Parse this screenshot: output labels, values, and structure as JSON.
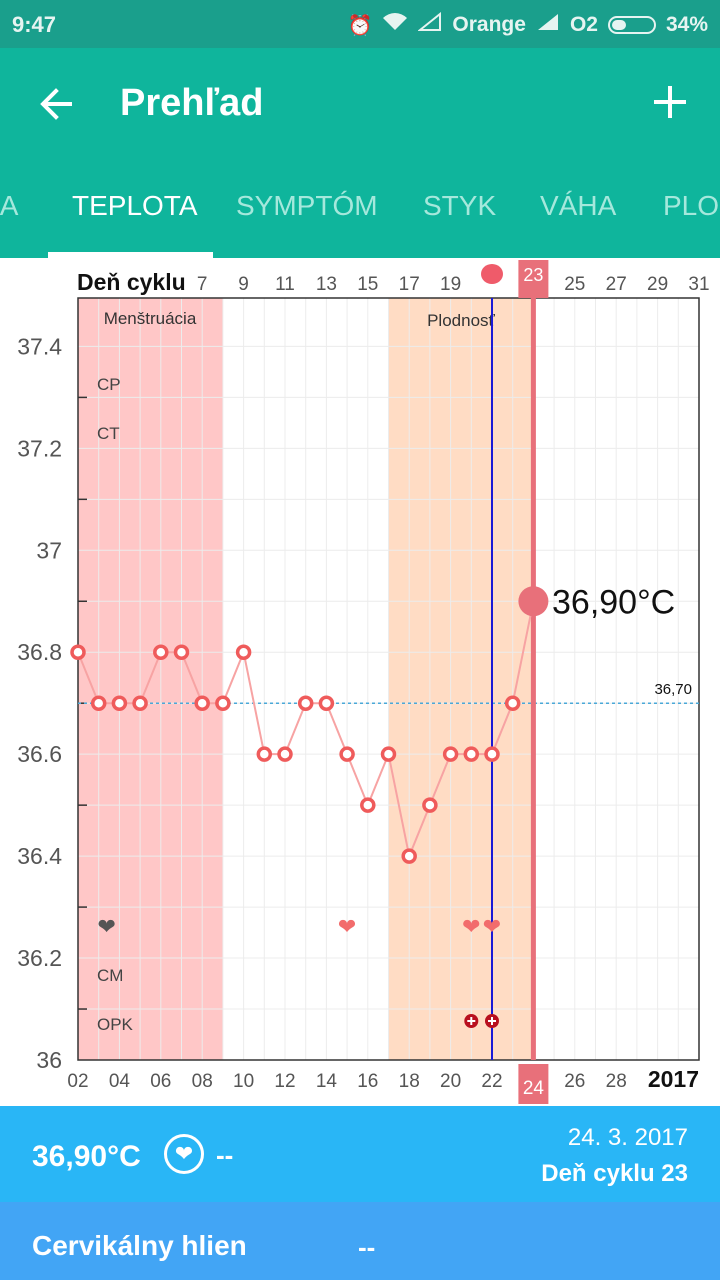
{
  "status_bar": {
    "time": "9:47",
    "carrier1": "Orange",
    "carrier2": "O2",
    "battery": "34%",
    "battery_level": 0.34,
    "icons": [
      "alarm-icon",
      "wifi-icon",
      "signal-icon",
      "signal-icon",
      "battery-icon"
    ]
  },
  "app_bar": {
    "title": "Prehľad",
    "back_icon": "arrow-left-icon",
    "add_icon": "plus-icon"
  },
  "tabs": [
    "IA",
    "TEPLOTA",
    "SYMPTÓM",
    "STYK",
    "VÁHA",
    "PLOD"
  ],
  "active_tab": "TEPLOTA",
  "chart": {
    "top_axis_label": "Deň cyklu",
    "top_ticks": [
      "7",
      "9",
      "11",
      "13",
      "15",
      "17",
      "19",
      "23",
      "25",
      "27",
      "29",
      "31"
    ],
    "bottom_ticks": [
      "02",
      "04",
      "06",
      "08",
      "10",
      "12",
      "14",
      "16",
      "18",
      "20",
      "22",
      "24",
      "26",
      "28"
    ],
    "year": "2017",
    "selected_top": "23",
    "selected_bottom": "24",
    "band_menstruation": "Menštruácia",
    "band_fertile": "Plodnosť",
    "row_labels": [
      "CP",
      "CT",
      "CM",
      "OPK"
    ],
    "ref_line_label": "36,70",
    "selected_value_label": "36,90°C",
    "y_ticks": [
      "37.4",
      "37.2",
      "37",
      "36.8",
      "36.6",
      "36.4",
      "36.2",
      "36"
    ]
  },
  "chart_data": {
    "type": "line",
    "title": "",
    "xlabel": "",
    "ylabel": "",
    "x": [
      2,
      3,
      4,
      5,
      6,
      7,
      8,
      9,
      10,
      11,
      12,
      13,
      14,
      15,
      16,
      17,
      18,
      19,
      20,
      21,
      22,
      23,
      24
    ],
    "values": [
      36.8,
      36.7,
      36.7,
      36.7,
      36.8,
      36.8,
      36.7,
      36.7,
      36.8,
      36.6,
      36.6,
      36.7,
      36.7,
      36.6,
      36.5,
      36.6,
      36.4,
      36.5,
      36.6,
      36.6,
      36.6,
      36.7,
      36.9
    ],
    "ylim": [
      36.0,
      37.45
    ],
    "xlim": [
      2,
      32
    ],
    "reference_line": 36.7,
    "menstruation_days": [
      2,
      9
    ],
    "fertile_days": [
      17,
      24
    ],
    "intercourse_days": [
      3,
      15,
      21,
      22
    ],
    "opk_days": [
      21,
      22
    ],
    "selected_day": 24,
    "today_marker_day": 22,
    "grid": true,
    "colors": {
      "line": "#f7a3a3",
      "point": "#ef5b5b",
      "menstruation": "#ffc7c7",
      "fertile": "#ffdcc4",
      "today_line": "#1a1ad6",
      "selected": "#e8707a",
      "ref_line": "#4aa8d8"
    }
  },
  "summary": {
    "temperature": "36,90°C",
    "intercourse": "--",
    "date": "24. 3. 2017",
    "cycle_day": "Deň cyklu 23"
  },
  "cervical": {
    "label": "Cervikálny hlien",
    "value": "--"
  }
}
